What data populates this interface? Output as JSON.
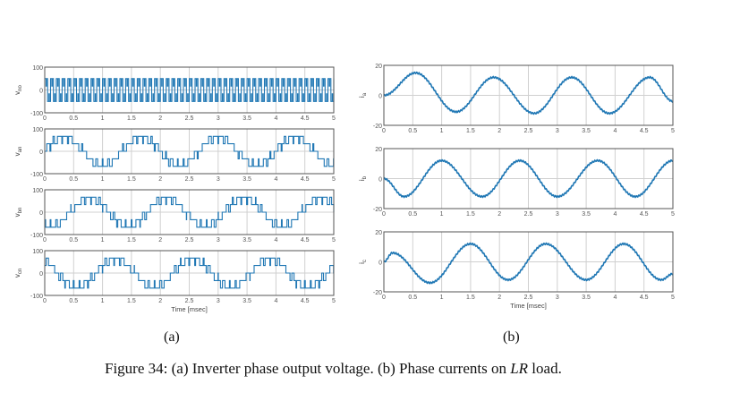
{
  "figure": {
    "sub_a": "(a)",
    "sub_b": "(b)",
    "caption_prefix": "Figure 34: ",
    "caption_part1": "(a) Inverter phase output voltage. (b) Phase currents on ",
    "caption_italic": "LR",
    "caption_part2": " load."
  },
  "colors": {
    "trace": "#1f77b4",
    "grid": "#d0d0d0",
    "axis": "#555555",
    "zero": "#c89a8a"
  },
  "chart_data": [
    {
      "type": "line",
      "panel": "a",
      "title": "",
      "ylabel": "v_no",
      "xlabel": "",
      "ylim": [
        -100,
        100
      ],
      "xlim": [
        0,
        5
      ],
      "xticks": [
        0,
        0.5,
        1,
        1.5,
        2,
        2.5,
        3,
        3.5,
        4,
        4.5,
        5
      ],
      "yticks": [
        -100,
        0,
        100
      ],
      "grid": true,
      "description": "Common-mode voltage, square-wave switching between about -50 and +50 at high frequency (~50 pulses over 5 ms)",
      "levels": [
        -50,
        -17,
        17,
        50
      ]
    },
    {
      "type": "line",
      "panel": "a",
      "ylabel": "v_an",
      "xlabel": "",
      "ylim": [
        -100,
        100
      ],
      "xlim": [
        0,
        5
      ],
      "xticks": [
        0,
        0.5,
        1,
        1.5,
        2,
        2.5,
        3,
        3.5,
        4,
        4.5,
        5
      ],
      "yticks": [
        -100,
        0,
        100
      ],
      "grid": true,
      "description": "Multilevel PWM phase voltage, fundamental period ~1.33 ms, levels 0, ±33, ±67",
      "levels": [
        -67,
        -33,
        0,
        33,
        67
      ],
      "phase_deg": 0
    },
    {
      "type": "line",
      "panel": "a",
      "ylabel": "v_bn",
      "xlabel": "",
      "ylim": [
        -100,
        100
      ],
      "xlim": [
        0,
        5
      ],
      "xticks": [
        0,
        0.5,
        1,
        1.5,
        2,
        2.5,
        3,
        3.5,
        4,
        4.5,
        5
      ],
      "yticks": [
        -100,
        0,
        100
      ],
      "grid": true,
      "levels": [
        -67,
        -33,
        0,
        33,
        67
      ],
      "phase_deg": -120
    },
    {
      "type": "line",
      "panel": "a",
      "ylabel": "v_cn",
      "xlabel": "Time [msec]",
      "ylim": [
        -100,
        100
      ],
      "xlim": [
        0,
        5
      ],
      "xticks": [
        0,
        0.5,
        1,
        1.5,
        2,
        2.5,
        3,
        3.5,
        4,
        4.5,
        5
      ],
      "yticks": [
        -100,
        0,
        100
      ],
      "grid": true,
      "levels": [
        -67,
        -33,
        0,
        33,
        67
      ],
      "phase_deg": 120
    },
    {
      "type": "line",
      "panel": "b",
      "ylabel": "i_a",
      "xlabel": "",
      "ylim": [
        -20,
        20
      ],
      "xlim": [
        0,
        5
      ],
      "xticks": [
        0,
        0.5,
        1,
        1.5,
        2,
        2.5,
        3,
        3.5,
        4,
        4.5,
        5
      ],
      "yticks": [
        -20,
        0,
        20
      ],
      "grid": true,
      "x": [
        0,
        0.55,
        1.25,
        1.9,
        2.6,
        3.25,
        3.9,
        4.6,
        5
      ],
      "y": [
        0,
        15,
        -11,
        12,
        -12,
        12,
        -12,
        12,
        -4
      ]
    },
    {
      "type": "line",
      "panel": "b",
      "ylabel": "i_b",
      "xlabel": "",
      "ylim": [
        -20,
        20
      ],
      "xlim": [
        0,
        5
      ],
      "xticks": [
        0,
        0.5,
        1,
        1.5,
        2,
        2.5,
        3,
        3.5,
        4,
        4.5,
        5
      ],
      "yticks": [
        -20,
        0,
        20
      ],
      "grid": true,
      "x": [
        0,
        0.35,
        1.0,
        1.7,
        2.35,
        3.0,
        3.7,
        4.35,
        5
      ],
      "y": [
        0,
        -12,
        12,
        -12,
        12,
        -12,
        12,
        -12,
        12
      ]
    },
    {
      "type": "line",
      "panel": "b",
      "ylabel": "i_c",
      "xlabel": "Time [msec]",
      "ylim": [
        -20,
        20
      ],
      "xlim": [
        0,
        5
      ],
      "xticks": [
        0,
        0.5,
        1,
        1.5,
        2,
        2.5,
        3,
        3.5,
        4,
        4.5,
        5
      ],
      "yticks": [
        -20,
        0,
        20
      ],
      "grid": true,
      "x": [
        0,
        0.15,
        0.8,
        1.5,
        2.15,
        2.8,
        3.5,
        4.15,
        4.8,
        5
      ],
      "y": [
        0,
        6,
        -14,
        12,
        -12,
        12,
        -12,
        12,
        -12,
        -8
      ]
    }
  ]
}
